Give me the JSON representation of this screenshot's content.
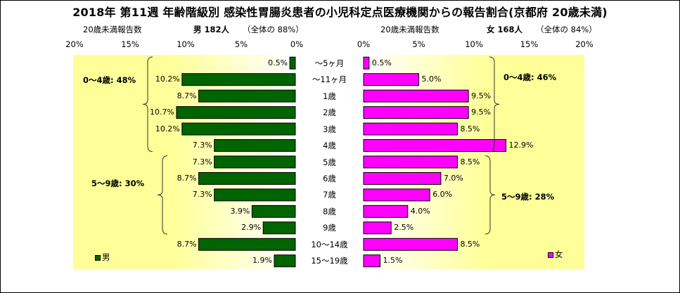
{
  "title": "2018年 第11週 年齢階級別 感染性胃腸炎患者の小児科定点医療機関からの報告割合(京都府 20歳未満)",
  "male_header": {
    "left": "20歳未満報告数",
    "main": "男  182人",
    "share": "（全体の  88%）"
  },
  "female_header": {
    "left": "20歳未満報告数",
    "main": "女  168人",
    "share": "（全体の  84%）"
  },
  "colors": {
    "male": "#006400",
    "female": "#ff00ff",
    "bg_fade": "#ffff99"
  },
  "chart_data": {
    "type": "bar",
    "orientation": "horizontal-pyramid",
    "categories": [
      "～5ヶ月",
      "～11ヶ月",
      "1歳",
      "2歳",
      "3歳",
      "4歳",
      "5歳",
      "6歳",
      "7歳",
      "8歳",
      "9歳",
      "10～14歳",
      "15～19歳"
    ],
    "xlim": [
      0,
      20
    ],
    "ticks": [
      "0%",
      "5%",
      "10%",
      "15%",
      "20%"
    ],
    "series": [
      {
        "name": "男",
        "values": [
          0.5,
          10.2,
          8.7,
          10.7,
          10.2,
          7.3,
          7.3,
          8.7,
          7.3,
          3.9,
          2.9,
          8.7,
          1.9
        ],
        "labels": [
          "0.5%",
          "10.2%",
          "8.7%",
          "10.7%",
          "10.2%",
          "7.3%",
          "7.3%",
          "8.7%",
          "7.3%",
          "3.9%",
          "2.9%",
          "8.7%",
          "1.9%"
        ]
      },
      {
        "name": "女",
        "values": [
          0.5,
          5.0,
          9.5,
          9.5,
          8.5,
          12.9,
          8.5,
          7.0,
          6.0,
          4.0,
          2.5,
          8.5,
          1.5
        ],
        "labels": [
          "0.5%",
          "5.0%",
          "9.5%",
          "9.5%",
          "8.5%",
          "12.9%",
          "8.5%",
          "7.0%",
          "6.0%",
          "4.0%",
          "2.5%",
          "8.5%",
          "1.5%"
        ]
      }
    ],
    "groups": {
      "male": [
        {
          "label": "0～4歳: 48%",
          "from": 0,
          "to": 5
        },
        {
          "label": "5～9歳: 30%",
          "from": 6,
          "to": 10
        }
      ],
      "female": [
        {
          "label": "0～4歳: 46%",
          "from": 0,
          "to": 5
        },
        {
          "label": "5～9歳: 28%",
          "from": 6,
          "to": 10
        }
      ]
    },
    "legend": {
      "male": "男",
      "female": "女"
    }
  }
}
